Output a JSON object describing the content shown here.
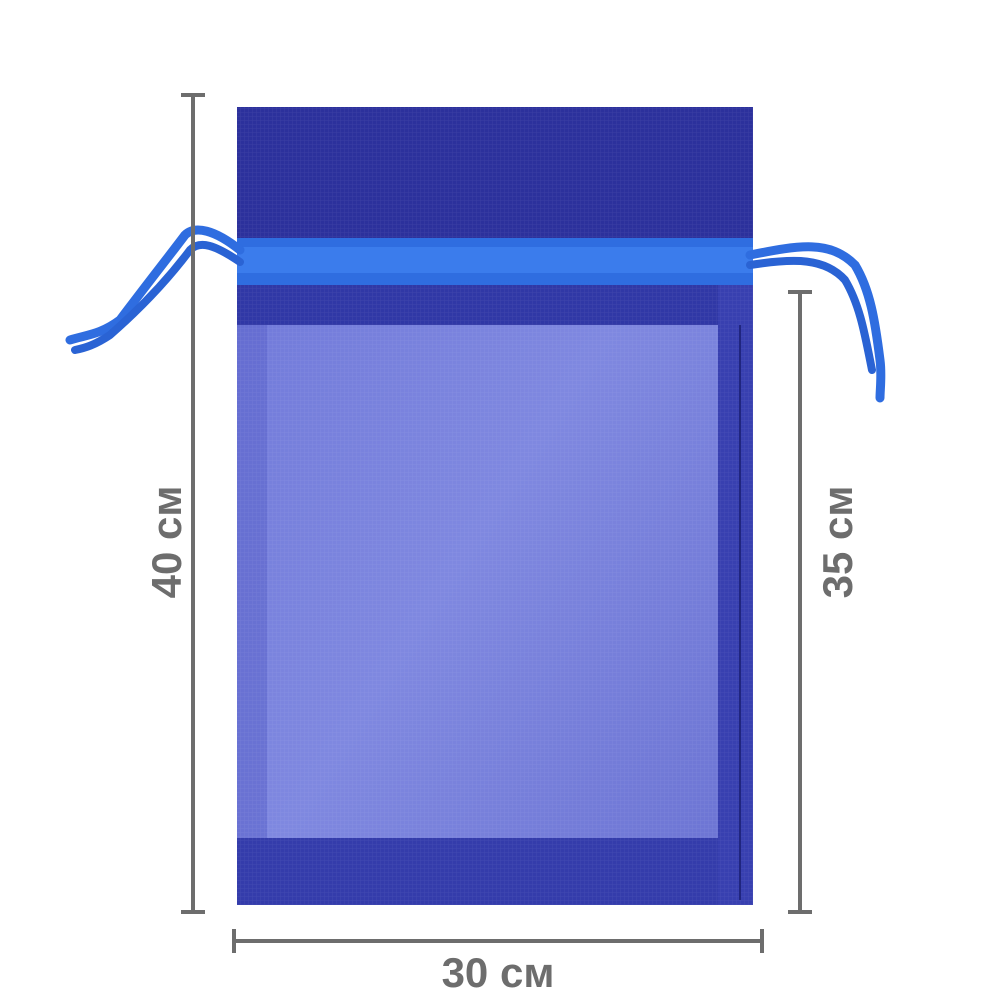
{
  "product": {
    "name_icon": "organza-drawstring-bag",
    "colors": {
      "bag_dark": "#2a2f9a",
      "bag_body": "#6f78d6",
      "ribbon": "#2f6ee0",
      "dimension_lines": "#6d6d6d"
    }
  },
  "dimensions": {
    "total_height": "40 см",
    "body_height": "35 см",
    "width": "30 см"
  }
}
